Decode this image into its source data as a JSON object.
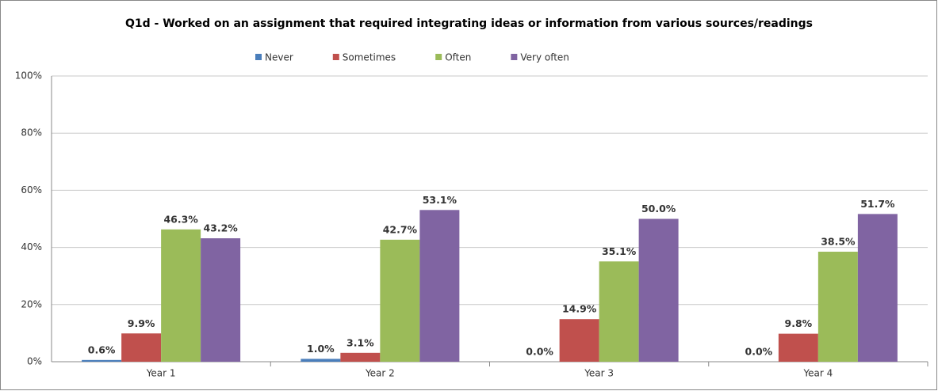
{
  "chart_data": {
    "type": "bar",
    "title": "Q1d - Worked on an assignment that required integrating ideas or information from various sources/readings",
    "categories": [
      "Year 1",
      "Year 2",
      "Year 3",
      "Year 4"
    ],
    "series": [
      {
        "name": "Never",
        "color": "#4a7ebb",
        "values": [
          0.6,
          1.0,
          0.0,
          0.0
        ],
        "value_labels": [
          "0.6%",
          "1.0%",
          "0.0%",
          "0.0%"
        ]
      },
      {
        "name": "Sometimes",
        "color": "#c0504d",
        "values": [
          9.9,
          3.1,
          14.9,
          9.8
        ],
        "value_labels": [
          "9.9%",
          "3.1%",
          "14.9%",
          "9.8%"
        ]
      },
      {
        "name": "Often",
        "color": "#9bbb59",
        "values": [
          46.3,
          42.7,
          35.1,
          38.5
        ],
        "value_labels": [
          "46.3%",
          "42.7%",
          "35.1%",
          "38.5%"
        ]
      },
      {
        "name": "Very often",
        "color": "#8064a2",
        "values": [
          43.2,
          53.1,
          50.0,
          51.7
        ],
        "value_labels": [
          "43.2%",
          "53.1%",
          "50.0%",
          "51.7%"
        ]
      }
    ],
    "ylim": [
      0,
      100
    ],
    "yticks": [
      {
        "value": 0,
        "label": "0%"
      },
      {
        "value": 20,
        "label": "20%"
      },
      {
        "value": 40,
        "label": "40%"
      },
      {
        "value": 60,
        "label": "60%"
      },
      {
        "value": 80,
        "label": "80%"
      },
      {
        "value": 100,
        "label": "100%"
      }
    ],
    "grid": true,
    "legend": "top"
  }
}
